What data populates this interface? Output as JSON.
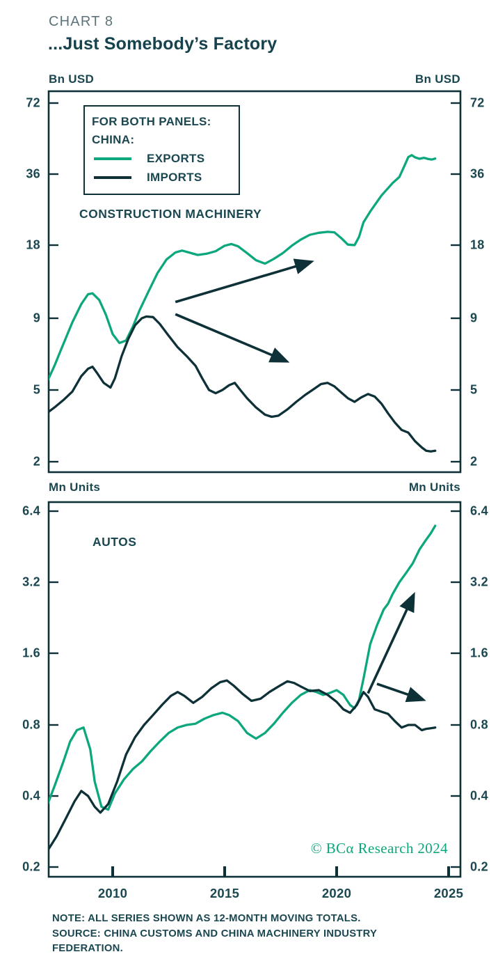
{
  "header": {
    "eyebrow": "CHART 8",
    "title": "...Just Somebody’s Factory"
  },
  "colors": {
    "exports": "#0ca77c",
    "imports": "#0e3138",
    "axis": "#0e3138",
    "label_text": "#1a4750",
    "eyebrow_text": "#5d747c",
    "watermark": "#0ca77c",
    "background": "#ffffff"
  },
  "legend": {
    "title_line1": "FOR BOTH PANELS:",
    "title_line2": "CHINA:",
    "entries": [
      {
        "label": "EXPORTS",
        "color_key": "exports"
      },
      {
        "label": "IMPORTS",
        "color_key": "imports"
      }
    ]
  },
  "watermark": "© BCα Research 2024",
  "note_lines": [
    "NOTE: ALL SERIES SHOWN AS 12-MONTH MOVING TOTALS.",
    "SOURCE: CHINA CUSTOMS AND CHINA MACHINERY INDUSTRY",
    "FEDERATION."
  ],
  "x_axis": {
    "tick_labels": [
      "2010",
      "2015",
      "2020",
      "2025"
    ],
    "tick_years": [
      2010,
      2015,
      2020,
      2025
    ]
  },
  "chart_data": [
    {
      "type": "line",
      "panel": "top",
      "title": "CONSTRUCTION MACHINERY",
      "unit_left": "Bn USD",
      "unit_right": "Bn USD",
      "y_axis": {
        "scale": "log-ratio",
        "tick_labels": [
          "72",
          "36",
          "18",
          "9",
          "5",
          "2"
        ],
        "tick_values": [
          72,
          36,
          18,
          9,
          5,
          2
        ]
      },
      "x_range": [
        2007.1,
        2025.6
      ],
      "series": [
        {
          "name": "CHINA EXPORTS",
          "color_key": "exports",
          "points": [
            [
              2007.1,
              5.4
            ],
            [
              2007.4,
              6.1
            ],
            [
              2007.8,
              7.3
            ],
            [
              2008.2,
              8.7
            ],
            [
              2008.6,
              10.3
            ],
            [
              2008.9,
              11.3
            ],
            [
              2009.1,
              11.4
            ],
            [
              2009.4,
              10.7
            ],
            [
              2009.7,
              9.3
            ],
            [
              2010.0,
              7.9
            ],
            [
              2010.3,
              7.35
            ],
            [
              2010.6,
              7.5
            ],
            [
              2010.9,
              8.4
            ],
            [
              2011.2,
              9.7
            ],
            [
              2011.6,
              11.6
            ],
            [
              2012.0,
              13.8
            ],
            [
              2012.4,
              15.7
            ],
            [
              2012.8,
              16.8
            ],
            [
              2013.1,
              17.1
            ],
            [
              2013.4,
              16.8
            ],
            [
              2013.8,
              16.4
            ],
            [
              2014.2,
              16.6
            ],
            [
              2014.6,
              17.0
            ],
            [
              2015.0,
              17.9
            ],
            [
              2015.3,
              18.2
            ],
            [
              2015.6,
              17.8
            ],
            [
              2016.0,
              16.7
            ],
            [
              2016.4,
              15.6
            ],
            [
              2016.8,
              15.1
            ],
            [
              2017.2,
              15.8
            ],
            [
              2017.6,
              16.7
            ],
            [
              2018.0,
              17.9
            ],
            [
              2018.4,
              19.0
            ],
            [
              2018.8,
              19.9
            ],
            [
              2019.2,
              20.3
            ],
            [
              2019.6,
              20.5
            ],
            [
              2019.9,
              20.4
            ],
            [
              2020.2,
              19.3
            ],
            [
              2020.5,
              18.1
            ],
            [
              2020.8,
              18.0
            ],
            [
              2021.0,
              19.5
            ],
            [
              2021.2,
              22.5
            ],
            [
              2021.5,
              25.0
            ],
            [
              2022.0,
              29.2
            ],
            [
              2022.5,
              33.0
            ],
            [
              2022.8,
              35.0
            ],
            [
              2023.0,
              38.5
            ],
            [
              2023.2,
              42.5
            ],
            [
              2023.35,
              43.3
            ],
            [
              2023.5,
              42.4
            ],
            [
              2023.7,
              41.8
            ],
            [
              2023.9,
              42.2
            ],
            [
              2024.1,
              41.7
            ],
            [
              2024.25,
              41.5
            ],
            [
              2024.4,
              41.9
            ]
          ]
        },
        {
          "name": "CHINA IMPORTS",
          "color_key": "imports",
          "points": [
            [
              2007.1,
              3.75
            ],
            [
              2007.4,
              4.0
            ],
            [
              2007.8,
              4.4
            ],
            [
              2008.2,
              4.9
            ],
            [
              2008.6,
              5.6
            ],
            [
              2008.9,
              5.95
            ],
            [
              2009.1,
              6.05
            ],
            [
              2009.3,
              5.75
            ],
            [
              2009.6,
              5.3
            ],
            [
              2009.9,
              5.1
            ],
            [
              2010.1,
              5.5
            ],
            [
              2010.4,
              6.6
            ],
            [
              2010.7,
              7.6
            ],
            [
              2011.0,
              8.5
            ],
            [
              2011.3,
              9.0
            ],
            [
              2011.5,
              9.15
            ],
            [
              2011.8,
              9.1
            ],
            [
              2012.1,
              8.6
            ],
            [
              2012.5,
              7.8
            ],
            [
              2012.9,
              7.1
            ],
            [
              2013.3,
              6.6
            ],
            [
              2013.7,
              6.1
            ],
            [
              2014.0,
              5.5
            ],
            [
              2014.3,
              5.0
            ],
            [
              2014.6,
              4.8
            ],
            [
              2014.9,
              5.0
            ],
            [
              2015.2,
              5.2
            ],
            [
              2015.45,
              5.3
            ],
            [
              2015.7,
              5.0
            ],
            [
              2016.0,
              4.5
            ],
            [
              2016.4,
              4.0
            ],
            [
              2016.8,
              3.65
            ],
            [
              2017.1,
              3.55
            ],
            [
              2017.4,
              3.6
            ],
            [
              2017.8,
              3.9
            ],
            [
              2018.2,
              4.3
            ],
            [
              2018.6,
              4.7
            ],
            [
              2019.0,
              5.05
            ],
            [
              2019.3,
              5.25
            ],
            [
              2019.6,
              5.3
            ],
            [
              2019.9,
              5.15
            ],
            [
              2020.2,
              4.85
            ],
            [
              2020.5,
              4.5
            ],
            [
              2020.8,
              4.3
            ],
            [
              2021.1,
              4.55
            ],
            [
              2021.4,
              4.75
            ],
            [
              2021.7,
              4.6
            ],
            [
              2022.0,
              4.2
            ],
            [
              2022.3,
              3.7
            ],
            [
              2022.6,
              3.3
            ],
            [
              2022.9,
              3.0
            ],
            [
              2023.2,
              2.9
            ],
            [
              2023.5,
              2.6
            ],
            [
              2023.8,
              2.4
            ],
            [
              2024.0,
              2.3
            ],
            [
              2024.2,
              2.28
            ],
            [
              2024.4,
              2.3
            ]
          ]
        }
      ],
      "annotations": [
        {
          "type": "arrow",
          "from": [
            2012.8,
            10.5
          ],
          "to": [
            2019.0,
            15.5
          ]
        },
        {
          "type": "arrow",
          "from": [
            2012.8,
            9.35
          ],
          "to": [
            2017.9,
            6.26
          ]
        }
      ]
    },
    {
      "type": "line",
      "panel": "bottom",
      "title": "AUTOS",
      "unit_left": "Mn Units",
      "unit_right": "Mn Units",
      "y_axis": {
        "scale": "log",
        "tick_labels": [
          "6.4",
          "3.2",
          "1.6",
          "0.8",
          "0.4",
          "0.2"
        ],
        "tick_values": [
          6.4,
          3.2,
          1.6,
          0.8,
          0.4,
          0.2
        ]
      },
      "x_range": [
        2007.1,
        2025.6
      ],
      "series": [
        {
          "name": "CHINA EXPORTS",
          "color_key": "exports",
          "points": [
            [
              2007.1,
              0.37
            ],
            [
              2007.4,
              0.44
            ],
            [
              2007.8,
              0.56
            ],
            [
              2008.1,
              0.68
            ],
            [
              2008.4,
              0.76
            ],
            [
              2008.7,
              0.78
            ],
            [
              2009.0,
              0.63
            ],
            [
              2009.2,
              0.46
            ],
            [
              2009.5,
              0.36
            ],
            [
              2009.8,
              0.35
            ],
            [
              2010.1,
              0.41
            ],
            [
              2010.5,
              0.47
            ],
            [
              2010.9,
              0.52
            ],
            [
              2011.3,
              0.56
            ],
            [
              2011.7,
              0.62
            ],
            [
              2012.1,
              0.68
            ],
            [
              2012.5,
              0.74
            ],
            [
              2012.9,
              0.78
            ],
            [
              2013.3,
              0.8
            ],
            [
              2013.7,
              0.81
            ],
            [
              2014.1,
              0.85
            ],
            [
              2014.5,
              0.88
            ],
            [
              2014.9,
              0.9
            ],
            [
              2015.2,
              0.88
            ],
            [
              2015.6,
              0.83
            ],
            [
              2016.0,
              0.74
            ],
            [
              2016.4,
              0.7
            ],
            [
              2016.8,
              0.74
            ],
            [
              2017.2,
              0.81
            ],
            [
              2017.6,
              0.9
            ],
            [
              2018.0,
              0.99
            ],
            [
              2018.4,
              1.07
            ],
            [
              2018.8,
              1.12
            ],
            [
              2019.1,
              1.1
            ],
            [
              2019.4,
              1.07
            ],
            [
              2019.7,
              1.09
            ],
            [
              2020.0,
              1.12
            ],
            [
              2020.3,
              1.07
            ],
            [
              2020.6,
              0.97
            ],
            [
              2020.8,
              0.94
            ],
            [
              2021.0,
              1.02
            ],
            [
              2021.2,
              1.25
            ],
            [
              2021.5,
              1.75
            ],
            [
              2021.8,
              2.1
            ],
            [
              2022.1,
              2.45
            ],
            [
              2022.3,
              2.6
            ],
            [
              2022.5,
              2.85
            ],
            [
              2022.8,
              3.2
            ],
            [
              2023.1,
              3.5
            ],
            [
              2023.4,
              3.85
            ],
            [
              2023.7,
              4.4
            ],
            [
              2024.0,
              4.85
            ],
            [
              2024.2,
              5.15
            ],
            [
              2024.4,
              5.55
            ]
          ]
        },
        {
          "name": "CHINA IMPORTS",
          "color_key": "imports",
          "points": [
            [
              2007.1,
              0.235
            ],
            [
              2007.5,
              0.27
            ],
            [
              2007.9,
              0.32
            ],
            [
              2008.3,
              0.38
            ],
            [
              2008.6,
              0.42
            ],
            [
              2008.9,
              0.4
            ],
            [
              2009.2,
              0.36
            ],
            [
              2009.45,
              0.34
            ],
            [
              2009.8,
              0.37
            ],
            [
              2010.2,
              0.46
            ],
            [
              2010.6,
              0.6
            ],
            [
              2011.0,
              0.71
            ],
            [
              2011.4,
              0.8
            ],
            [
              2011.8,
              0.88
            ],
            [
              2012.2,
              0.97
            ],
            [
              2012.6,
              1.06
            ],
            [
              2012.9,
              1.1
            ],
            [
              2013.2,
              1.06
            ],
            [
              2013.6,
              0.99
            ],
            [
              2014.0,
              1.05
            ],
            [
              2014.4,
              1.14
            ],
            [
              2014.8,
              1.21
            ],
            [
              2015.1,
              1.23
            ],
            [
              2015.4,
              1.17
            ],
            [
              2015.8,
              1.08
            ],
            [
              2016.2,
              1.01
            ],
            [
              2016.6,
              1.03
            ],
            [
              2017.0,
              1.1
            ],
            [
              2017.4,
              1.16
            ],
            [
              2017.8,
              1.22
            ],
            [
              2018.1,
              1.2
            ],
            [
              2018.4,
              1.16
            ],
            [
              2018.8,
              1.11
            ],
            [
              2019.2,
              1.12
            ],
            [
              2019.6,
              1.07
            ],
            [
              2020.0,
              1.0
            ],
            [
              2020.3,
              0.93
            ],
            [
              2020.6,
              0.9
            ],
            [
              2020.9,
              0.97
            ],
            [
              2021.2,
              1.1
            ],
            [
              2021.4,
              1.05
            ],
            [
              2021.7,
              0.93
            ],
            [
              2022.0,
              0.91
            ],
            [
              2022.3,
              0.89
            ],
            [
              2022.6,
              0.83
            ],
            [
              2022.9,
              0.78
            ],
            [
              2023.2,
              0.8
            ],
            [
              2023.5,
              0.8
            ],
            [
              2023.8,
              0.76
            ],
            [
              2024.0,
              0.77
            ],
            [
              2024.2,
              0.775
            ],
            [
              2024.4,
              0.78
            ]
          ]
        }
      ],
      "annotations": [
        {
          "type": "arrow",
          "from": [
            2021.4,
            1.086
          ],
          "to": [
            2023.5,
            2.91
          ]
        },
        {
          "type": "arrow",
          "from": [
            2021.8,
            1.19
          ],
          "to": [
            2024.0,
            1.01
          ]
        }
      ]
    }
  ]
}
